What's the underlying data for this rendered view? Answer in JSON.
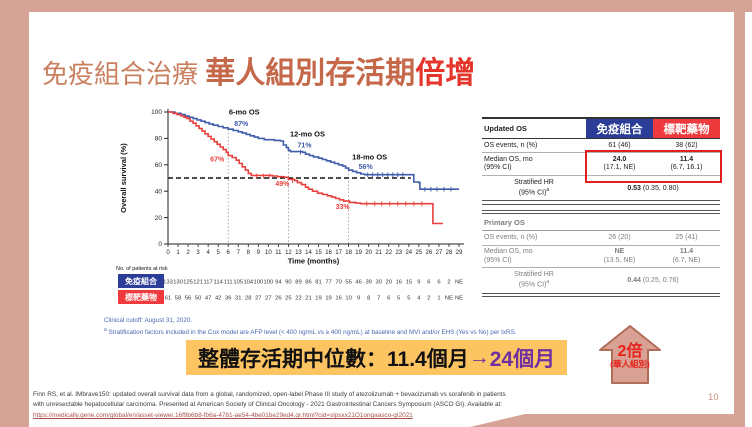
{
  "title": {
    "part1": "免疫組合治療 ",
    "part2": "華人組別存活期",
    "part3": "倍增"
  },
  "chart_data": {
    "type": "line",
    "subtype": "kaplan_meier_step",
    "ylabel": "Overall survival (%)",
    "xlabel": "Time (months)",
    "xlim": [
      0,
      29
    ],
    "ylim": [
      0,
      100
    ],
    "yticks": [
      0,
      20,
      40,
      60,
      80,
      100
    ],
    "xticks": [
      0,
      1,
      2,
      3,
      4,
      5,
      6,
      7,
      8,
      9,
      10,
      11,
      12,
      13,
      14,
      15,
      16,
      17,
      18,
      19,
      20,
      21,
      22,
      23,
      24,
      25,
      26,
      27,
      28,
      29
    ],
    "grid": false,
    "median_reference_line": {
      "y": 50,
      "x_end": 24.2,
      "style": "dashed"
    },
    "milestone_lines": [
      {
        "x": 6,
        "y_top": 87
      },
      {
        "x": 12,
        "y_top": 71
      },
      {
        "x": 18,
        "y_top": 56
      }
    ],
    "annotations": [
      {
        "text": "6-mo OS",
        "x": 7.6,
        "y": 98,
        "color": "#111111",
        "size": 7.5
      },
      {
        "text": "87%",
        "x": 7.3,
        "y": 89.5,
        "color": "#3f5dab",
        "size": 7
      },
      {
        "text": "12-mo OS",
        "x": 13.9,
        "y": 81.5,
        "color": "#111111",
        "size": 7.5
      },
      {
        "text": "71%",
        "x": 13.6,
        "y": 73,
        "color": "#3f5dab",
        "size": 7
      },
      {
        "text": "18-mo OS",
        "x": 20.1,
        "y": 64,
        "color": "#111111",
        "size": 7.5
      },
      {
        "text": "56%",
        "x": 19.7,
        "y": 57,
        "color": "#3f5dab",
        "size": 7
      },
      {
        "text": "67%",
        "x": 4.9,
        "y": 62.5,
        "color": "#e8403c",
        "size": 7
      },
      {
        "text": "49%",
        "x": 11.4,
        "y": 44,
        "color": "#e8403c",
        "size": 7
      },
      {
        "text": "33%",
        "x": 17.4,
        "y": 26.5,
        "color": "#e8403c",
        "size": 7
      }
    ],
    "series": [
      {
        "name": "免疫組合",
        "color": "#3f5dab",
        "points": [
          [
            0,
            100
          ],
          [
            0.7,
            99
          ],
          [
            1.3,
            98
          ],
          [
            1.7,
            97
          ],
          [
            2.1,
            96
          ],
          [
            2.5,
            95
          ],
          [
            2.9,
            94
          ],
          [
            3.3,
            93
          ],
          [
            3.7,
            92
          ],
          [
            4.1,
            91
          ],
          [
            4.5,
            90
          ],
          [
            5,
            89
          ],
          [
            5.5,
            88
          ],
          [
            6,
            87
          ],
          [
            6.5,
            86
          ],
          [
            7,
            85
          ],
          [
            7.4,
            84
          ],
          [
            7.8,
            83
          ],
          [
            8.2,
            82
          ],
          [
            8.6,
            81
          ],
          [
            9,
            80
          ],
          [
            9.6,
            79
          ],
          [
            10.6,
            78.5
          ],
          [
            11.2,
            78
          ],
          [
            11.5,
            75
          ],
          [
            11.8,
            73
          ],
          [
            12,
            71
          ],
          [
            12.2,
            70
          ],
          [
            13.4,
            69.5
          ],
          [
            13.7,
            68
          ],
          [
            14.1,
            67
          ],
          [
            14.5,
            66
          ],
          [
            15,
            65
          ],
          [
            15.4,
            64
          ],
          [
            15.8,
            63
          ],
          [
            16.2,
            62
          ],
          [
            16.6,
            61
          ],
          [
            17,
            60
          ],
          [
            17.4,
            59
          ],
          [
            17.7,
            57.5
          ],
          [
            18,
            56
          ],
          [
            18.4,
            55
          ],
          [
            18.8,
            54
          ],
          [
            19.2,
            53
          ],
          [
            19.6,
            52.5
          ],
          [
            24.3,
            52.5
          ],
          [
            24.5,
            47
          ],
          [
            25,
            46.5
          ],
          [
            25.1,
            41.5
          ],
          [
            29,
            41.5
          ]
        ],
        "censors": [
          [
            13.2,
            69.5
          ],
          [
            19.9,
            52.5
          ],
          [
            20.4,
            52.5
          ],
          [
            20.9,
            52.5
          ],
          [
            21.4,
            52.5
          ],
          [
            21.9,
            52.5
          ],
          [
            22.4,
            52.5
          ],
          [
            22.9,
            52.5
          ],
          [
            23.4,
            52.5
          ],
          [
            25.6,
            41.5
          ],
          [
            26.2,
            41.5
          ],
          [
            26.8,
            41.5
          ],
          [
            27.5,
            41.5
          ],
          [
            28.2,
            41.5
          ]
        ]
      },
      {
        "name": "標靶藥物",
        "color": "#e8403c",
        "points": [
          [
            0,
            100
          ],
          [
            0.5,
            99
          ],
          [
            0.9,
            98
          ],
          [
            1.3,
            97
          ],
          [
            1.6,
            96
          ],
          [
            1.9,
            95
          ],
          [
            2.2,
            93
          ],
          [
            2.5,
            91.5
          ],
          [
            2.8,
            89.5
          ],
          [
            3.1,
            87.5
          ],
          [
            3.4,
            85.5
          ],
          [
            3.7,
            83.5
          ],
          [
            4,
            81.5
          ],
          [
            4.3,
            79.5
          ],
          [
            4.6,
            77.5
          ],
          [
            4.9,
            75.5
          ],
          [
            5.2,
            73.5
          ],
          [
            5.5,
            71.5
          ],
          [
            5.8,
            69.5
          ],
          [
            6,
            67
          ],
          [
            6.4,
            65.5
          ],
          [
            6.8,
            63.5
          ],
          [
            7.1,
            61
          ],
          [
            7.4,
            58.5
          ],
          [
            7.7,
            56
          ],
          [
            8,
            53.5
          ],
          [
            8.3,
            52
          ],
          [
            10.4,
            51.5
          ],
          [
            10.9,
            51
          ],
          [
            11.6,
            50.5
          ],
          [
            12,
            49
          ],
          [
            12.6,
            48
          ],
          [
            12.9,
            46.5
          ],
          [
            13.3,
            45
          ],
          [
            13.7,
            43
          ],
          [
            14,
            41.5
          ],
          [
            14.4,
            40
          ],
          [
            14.9,
            38.5
          ],
          [
            15.4,
            37.5
          ],
          [
            15.9,
            36.5
          ],
          [
            16.3,
            35.5
          ],
          [
            16.7,
            34.5
          ],
          [
            17.1,
            33.5
          ],
          [
            17.5,
            32.5
          ],
          [
            18.1,
            31.5
          ],
          [
            18.7,
            31
          ],
          [
            19.2,
            30.5
          ],
          [
            26.2,
            30.5
          ],
          [
            26.4,
            15.5
          ],
          [
            27.4,
            15.5
          ]
        ],
        "censors": [
          [
            8.8,
            51.5
          ],
          [
            9.5,
            51.5
          ],
          [
            10.1,
            51.5
          ],
          [
            12.4,
            48
          ],
          [
            19.8,
            30.5
          ],
          [
            20.6,
            30.5
          ],
          [
            21.3,
            30.5
          ],
          [
            22.1,
            30.5
          ],
          [
            22.9,
            30.5
          ],
          [
            23.7,
            30.5
          ],
          [
            24.5,
            30.5
          ],
          [
            25.3,
            30.5
          ]
        ]
      }
    ],
    "at_risk": {
      "label": "No. of patients at risk",
      "groups": [
        {
          "name": "免疫組合",
          "color": "#2b3d97",
          "values": [
            "133",
            "130",
            "125",
            "121",
            "117",
            "114",
            "111",
            "105",
            "104",
            "100",
            "100",
            "94",
            "90",
            "89",
            "86",
            "81",
            "77",
            "70",
            "55",
            "46",
            "39",
            "30",
            "20",
            "16",
            "15",
            "9",
            "6",
            "6",
            "2",
            "NE"
          ]
        },
        {
          "name": "標靶藥物",
          "color": "#ee3a3d",
          "values": [
            "61",
            "58",
            "56",
            "50",
            "47",
            "42",
            "36",
            "31",
            "28",
            "27",
            "27",
            "26",
            "25",
            "22",
            "21",
            "19",
            "19",
            "16",
            "10",
            "9",
            "8",
            "7",
            "6",
            "5",
            "5",
            "4",
            "2",
            "1",
            "NE",
            "NE"
          ]
        }
      ]
    }
  },
  "results_table": {
    "header_label": "Updated OS",
    "arm1": "免疫組合",
    "arm2": "標靶藥物",
    "sup": "a",
    "updated": {
      "events_label": "OS events, n (%)",
      "events_v1": "61 (46)",
      "events_v2": "38 (62)",
      "median_label": "Median OS, mo",
      "median_label2": "(95% CI)",
      "median_v1": "24.0",
      "median_v1_ci": "(17.1, NE)",
      "median_v2": "11.4",
      "median_v2_ci": "(6.7, 16.1)",
      "hr_label": "Stratified HR",
      "hr_label2": "(95% CI)",
      "hr_value_bold": "0.53",
      "hr_value_rest": " (0.35, 0.80)"
    },
    "primary_header": "Primary OS",
    "primary": {
      "events_label": "OS events, n (%)",
      "events_v1": "26 (20)",
      "events_v2": "25 (41)",
      "median_label": "Median OS, mo",
      "median_label2": "(95% CI)",
      "median_v1": "NE",
      "median_v1_ci": "(13.5, NE)",
      "median_v2": "11.4",
      "median_v2_ci": "(6.7, NE)",
      "hr_label": "Stratified HR",
      "hr_label2": "(95% CI)",
      "hr_value_bold": "0.44",
      "hr_value_rest": " (0.25, 0.76)"
    }
  },
  "footnotes": {
    "cutoff": "Clinical cutoff: August 31, 2020.",
    "sup": "a",
    "stratification": " Stratification factors included in the Cox model are AFP level (< 400 ng/mL vs ≥ 400 ng/mL) at baseline and MVI and/or EHS (Yes vs No) per IxRS."
  },
  "banner": {
    "text_black": "整體存活期中位數：11.4個月",
    "arrow": "→",
    "text_purple": "24個月",
    "bg": "#fdc462"
  },
  "arrow_callout": {
    "line1": "2倍",
    "line2": "(華人組別)"
  },
  "footer": {
    "citation_line1": "Finn RS, et al. IMbrave150: updated overall survival data from a global, randomized, open-label Phase III study of atezolizumab + bevacizumab vs sorafenib in patients",
    "citation_line2": "with unresectable hepatocellular carcinoma. Presented at American Society of Clinical Oncology - 2021 Gastrointestinal Cancers Symposium (ASCO GI). Available at:",
    "link": "https://medically.gene.com/global/en/asset-viewer.16f9b6b8-fb6a-4781-ae54-4be01be29ed4.qr.html?cid=slpsxx21O1ongaasco-gI2021",
    "page_number": "10"
  },
  "colors": {
    "frame": "#d6a496",
    "title_accent": "#c5684a",
    "title_red": "#e5352b",
    "immuno_blue": "#2b3d97",
    "curve_blue": "#3f5dab",
    "targeted_red": "#ee3a3d",
    "curve_red": "#e8403c",
    "banner_yellow": "#fdc462",
    "banner_purple": "#7030a0",
    "highlight_box_red": "#e01f1f"
  }
}
